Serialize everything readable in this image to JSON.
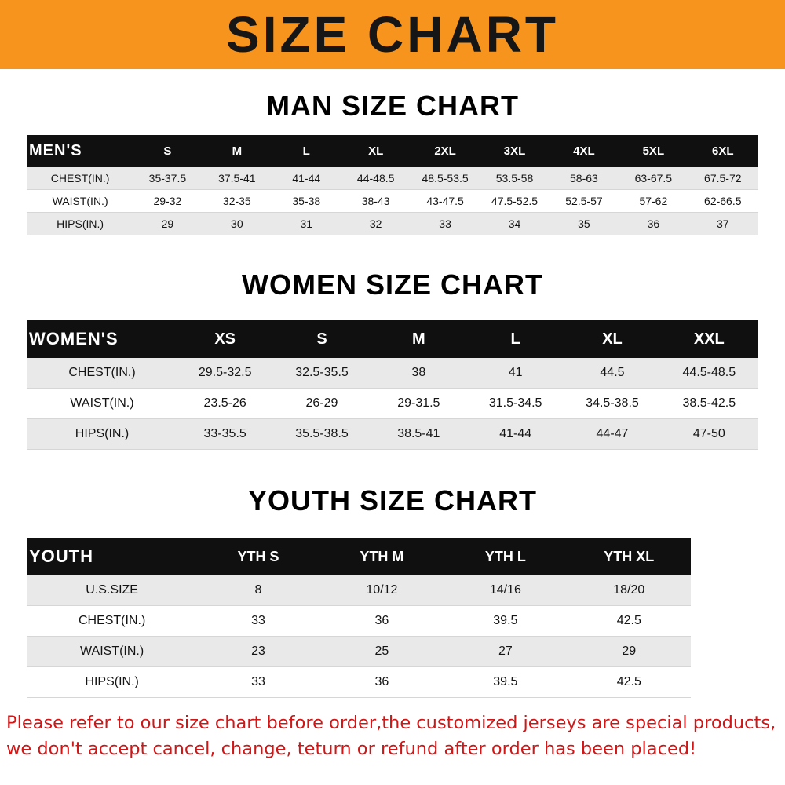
{
  "banner": {
    "title": "SIZE CHART",
    "bg_color": "#F7941E",
    "text_color": "#161616"
  },
  "chart_data": [
    {
      "type": "table",
      "title": "MAN SIZE CHART",
      "header": [
        "MEN'S",
        "S",
        "M",
        "L",
        "XL",
        "2XL",
        "3XL",
        "4XL",
        "5XL",
        "6XL"
      ],
      "rows": [
        [
          "CHEST(IN.)",
          "35-37.5",
          "37.5-41",
          "41-44",
          "44-48.5",
          "48.5-53.5",
          "53.5-58",
          "58-63",
          "63-67.5",
          "67.5-72"
        ],
        [
          "WAIST(IN.)",
          "29-32",
          "32-35",
          "35-38",
          "38-43",
          "43-47.5",
          "47.5-52.5",
          "52.5-57",
          "57-62",
          "62-66.5"
        ],
        [
          "HIPS(IN.)",
          "29",
          "30",
          "31",
          "32",
          "33",
          "34",
          "35",
          "36",
          "37"
        ]
      ]
    },
    {
      "type": "table",
      "title": "WOMEN SIZE CHART",
      "header": [
        "WOMEN'S",
        "XS",
        "S",
        "M",
        "L",
        "XL",
        "XXL"
      ],
      "rows": [
        [
          "CHEST(IN.)",
          "29.5-32.5",
          "32.5-35.5",
          "38",
          "41",
          "44.5",
          "44.5-48.5"
        ],
        [
          "WAIST(IN.)",
          "23.5-26",
          "26-29",
          "29-31.5",
          "31.5-34.5",
          "34.5-38.5",
          "38.5-42.5"
        ],
        [
          "HIPS(IN.)",
          "33-35.5",
          "35.5-38.5",
          "38.5-41",
          "41-44",
          "44-47",
          "47-50"
        ]
      ]
    },
    {
      "type": "table",
      "title": "YOUTH SIZE CHART",
      "header": [
        "YOUTH",
        "YTH S",
        "YTH M",
        "YTH L",
        "YTH XL"
      ],
      "rows": [
        [
          "U.S.SIZE",
          "8",
          "10/12",
          "14/16",
          "18/20"
        ],
        [
          "CHEST(IN.)",
          "33",
          "36",
          "39.5",
          "42.5"
        ],
        [
          "WAIST(IN.)",
          "23",
          "25",
          "27",
          "29"
        ],
        [
          "HIPS(IN.)",
          "33",
          "36",
          "39.5",
          "42.5"
        ]
      ]
    }
  ],
  "footer": {
    "text_color": "#d01616",
    "lines": [
      "Please refer to our size chart before order,the customized jerseys are special products,",
      "we don't accept cancel, change, teturn or refund after order has been placed!"
    ]
  }
}
